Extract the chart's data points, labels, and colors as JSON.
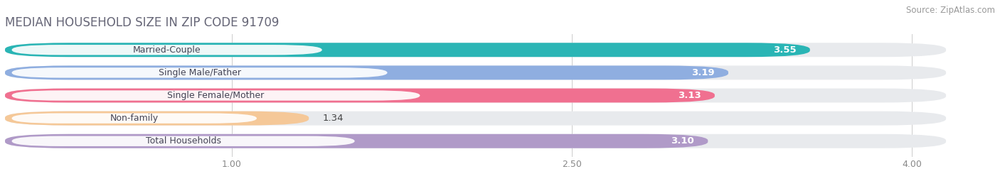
{
  "title": "MEDIAN HOUSEHOLD SIZE IN ZIP CODE 91709",
  "source": "Source: ZipAtlas.com",
  "categories": [
    "Married-Couple",
    "Single Male/Father",
    "Single Female/Mother",
    "Non-family",
    "Total Households"
  ],
  "values": [
    3.55,
    3.19,
    3.13,
    1.34,
    3.1
  ],
  "bar_colors": [
    "#2ab5b5",
    "#8faee0",
    "#f07090",
    "#f5c898",
    "#b09ac8"
  ],
  "bar_bg_color": "#e8eaed",
  "xlim_start": 0.0,
  "xlim_end": 4.3,
  "plot_xstart": 0.0,
  "plot_xend": 4.15,
  "xticks": [
    1.0,
    2.5,
    4.0
  ],
  "xtick_labels": [
    "1.00",
    "2.50",
    "4.00"
  ],
  "background_color": "#ffffff",
  "title_fontsize": 12,
  "source_fontsize": 8.5,
  "bar_label_fontsize": 9.5,
  "category_fontsize": 9
}
